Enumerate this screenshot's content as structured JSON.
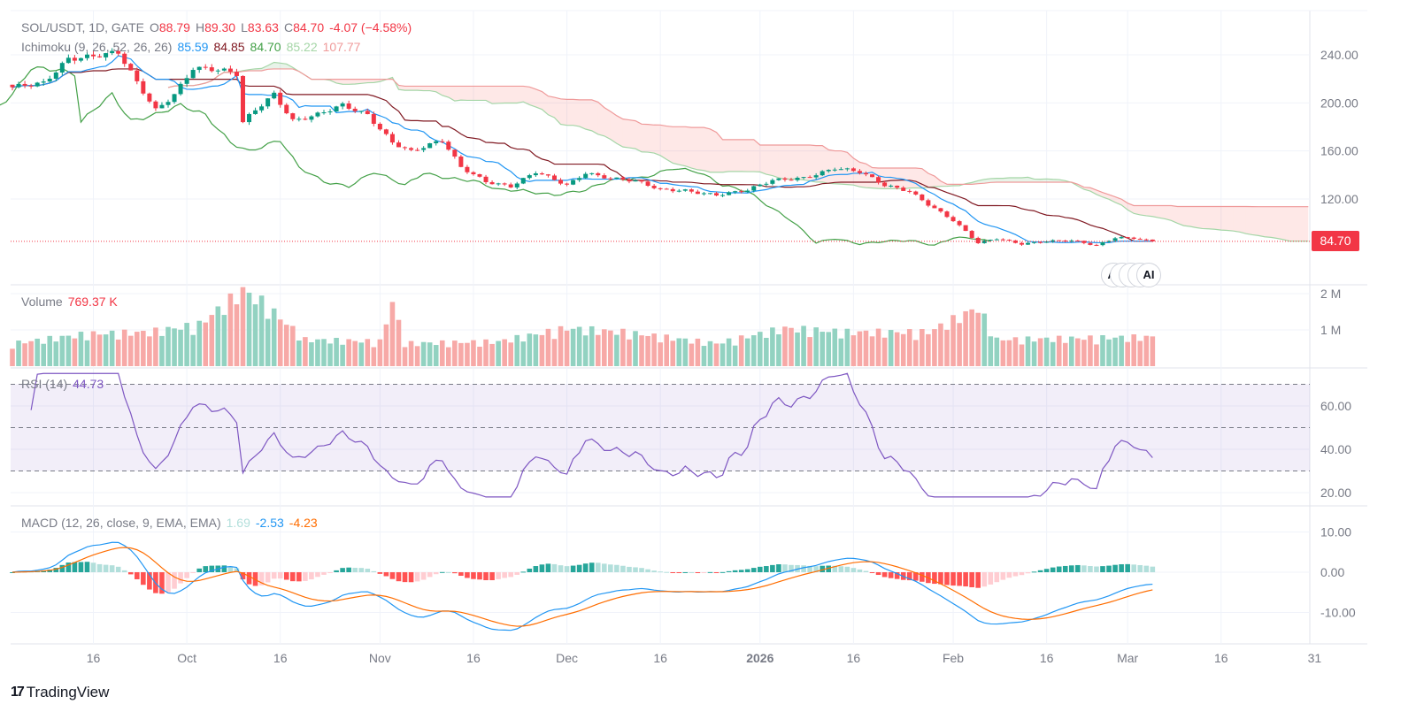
{
  "header": {
    "symbol": "SOL/USDT, 1D, GATE",
    "open_label": "O",
    "open": "88.79",
    "high_label": "H",
    "high": "89.30",
    "low_label": "L",
    "low": "83.63",
    "close_label": "C",
    "close": "84.70",
    "change": "-4.07 (−4.58%)"
  },
  "ichimoku_legend": {
    "name": "Ichimoku (9, 26, 52, 26, 26)",
    "conversion": "85.59",
    "base": "84.85",
    "lagging": "84.70",
    "lead1": "85.22",
    "lead2": "107.77"
  },
  "volume_legend": {
    "name": "Volume",
    "value": "769.37 K"
  },
  "rsi_legend": {
    "name": "RSI (14)",
    "value": "44.73"
  },
  "macd_legend": {
    "name": "MACD (12, 26, close, 9, EMA, EMA)",
    "hist": "1.69",
    "macd": "-2.53",
    "signal": "-4.23"
  },
  "last_price_tag": "84.70",
  "ai_badge_label": "AI",
  "footer": {
    "brand": "TradingView",
    "logo_mark": "17"
  },
  "colors": {
    "up": "#089981",
    "down": "#f23645",
    "vol_up": "#92d2c1",
    "vol_down": "#f7a9a7",
    "tenkan": "#2196f3",
    "kijun": "#801922",
    "chikou": "#43a047",
    "lead1": "#a5d6a7",
    "lead2": "#ef9a9a",
    "rsi": "#7e57c2",
    "macd": "#2196f3",
    "signal": "#ff6d00"
  },
  "chart_data": {
    "type": "candlestick",
    "start_date": "2025-09-03",
    "end_date": "2026-03-05",
    "price": {
      "close_keypoints": [
        [
          "2025-09-03",
          212
        ],
        [
          "2025-09-08",
          216
        ],
        [
          "2025-09-12",
          238
        ],
        [
          "2025-09-17",
          240
        ],
        [
          "2025-09-20",
          241
        ],
        [
          "2025-09-23",
          216
        ],
        [
          "2025-09-26",
          194
        ],
        [
          "2025-09-29",
          208
        ],
        [
          "2025-10-02",
          230
        ],
        [
          "2025-10-06",
          227
        ],
        [
          "2025-10-09",
          223
        ],
        [
          "2025-10-10",
          183
        ],
        [
          "2025-10-12",
          194
        ],
        [
          "2025-10-15",
          208
        ],
        [
          "2025-10-18",
          186
        ],
        [
          "2025-10-22",
          190
        ],
        [
          "2025-10-26",
          197
        ],
        [
          "2025-10-30",
          190
        ],
        [
          "2025-11-03",
          168
        ],
        [
          "2025-11-06",
          160
        ],
        [
          "2025-11-11",
          168
        ],
        [
          "2025-11-14",
          146
        ],
        [
          "2025-11-18",
          135
        ],
        [
          "2025-11-22",
          131
        ],
        [
          "2025-11-26",
          142
        ],
        [
          "2025-12-01",
          131
        ],
        [
          "2025-12-04",
          142
        ],
        [
          "2025-12-08",
          138
        ],
        [
          "2025-12-12",
          135
        ],
        [
          "2025-12-16",
          127
        ],
        [
          "2025-12-20",
          127
        ],
        [
          "2025-12-25",
          124
        ],
        [
          "2025-12-30",
          127
        ],
        [
          "2026-01-03",
          135
        ],
        [
          "2026-01-08",
          138
        ],
        [
          "2026-01-13",
          146
        ],
        [
          "2026-01-17",
          142
        ],
        [
          "2026-01-21",
          131
        ],
        [
          "2026-01-25",
          127
        ],
        [
          "2026-01-28",
          116
        ],
        [
          "2026-02-01",
          102
        ],
        [
          "2026-02-05",
          83
        ],
        [
          "2026-02-08",
          87
        ],
        [
          "2026-02-12",
          83
        ],
        [
          "2026-02-16",
          85
        ],
        [
          "2026-02-20",
          85
        ],
        [
          "2026-02-24",
          81
        ],
        [
          "2026-02-27",
          88
        ],
        [
          "2026-03-02",
          88
        ],
        [
          "2026-03-05",
          84.7
        ]
      ],
      "y_ticks": [
        240,
        200,
        160,
        120
      ],
      "y_tick_labels": [
        "240.00",
        "200.00",
        "160.00",
        "120.00"
      ]
    },
    "volume": {
      "unit": "K",
      "keypoints": [
        [
          "2025-09-03",
          600
        ],
        [
          "2025-09-15",
          850
        ],
        [
          "2025-09-25",
          900
        ],
        [
          "2025-10-03",
          1100
        ],
        [
          "2025-10-10",
          2000
        ],
        [
          "2025-10-13",
          1700
        ],
        [
          "2025-10-20",
          700
        ],
        [
          "2025-11-01",
          650
        ],
        [
          "2025-11-03",
          1700
        ],
        [
          "2025-11-05",
          600
        ],
        [
          "2025-11-20",
          650
        ],
        [
          "2025-12-01",
          1000
        ],
        [
          "2025-12-10",
          900
        ],
        [
          "2025-12-25",
          600
        ],
        [
          "2026-01-05",
          1000
        ],
        [
          "2026-01-15",
          900
        ],
        [
          "2026-01-28",
          900
        ],
        [
          "2026-02-05",
          1550
        ],
        [
          "2026-02-08",
          700
        ],
        [
          "2026-02-25",
          750
        ],
        [
          "2026-03-05",
          770
        ]
      ],
      "y_ticks": [
        2000,
        1000
      ],
      "y_tick_labels": [
        "2 M",
        "1 M"
      ]
    },
    "rsi": {
      "period": 14,
      "levels": [
        70,
        50,
        30
      ],
      "y_ticks": [
        60,
        40,
        20
      ],
      "y_tick_labels": [
        "60.00",
        "40.00",
        "20.00"
      ]
    },
    "macd": {
      "fast": 12,
      "slow": 26,
      "signal": 9,
      "y_ticks": [
        10,
        0,
        -10
      ],
      "y_tick_labels": [
        "10.00",
        "0.00",
        "-10.00"
      ]
    },
    "ichimoku": {
      "conversion": 9,
      "base": 26,
      "span_b": 52,
      "lagging": 26,
      "displacement": 26
    },
    "x_ticks": [
      {
        "date": "2025-09-16",
        "label": "16"
      },
      {
        "date": "2025-10-01",
        "label": "Oct"
      },
      {
        "date": "2025-10-16",
        "label": "16"
      },
      {
        "date": "2025-11-01",
        "label": "Nov"
      },
      {
        "date": "2025-11-16",
        "label": "16"
      },
      {
        "date": "2025-12-01",
        "label": "Dec"
      },
      {
        "date": "2025-12-16",
        "label": "16"
      },
      {
        "date": "2026-01-01",
        "label": "2026"
      },
      {
        "date": "2026-01-16",
        "label": "16"
      },
      {
        "date": "2026-02-01",
        "label": "Feb"
      },
      {
        "date": "2026-02-16",
        "label": "16"
      },
      {
        "date": "2026-03-01",
        "label": "Mar"
      },
      {
        "date": "2026-03-16",
        "label": "16"
      },
      {
        "date": "2026-03-31",
        "label": "31"
      }
    ]
  }
}
